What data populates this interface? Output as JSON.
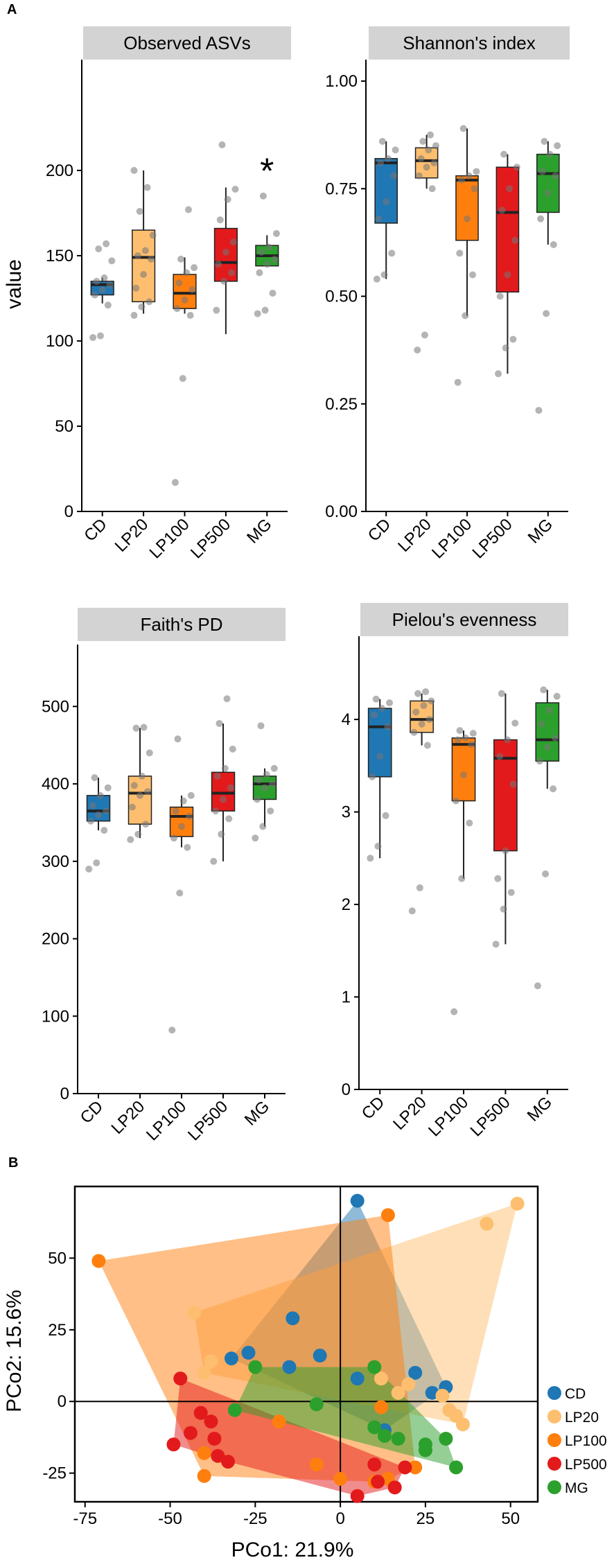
{
  "figure": {
    "panel_a_label": "A",
    "panel_b_label": "B",
    "y_label": "value"
  },
  "groups": [
    "CD",
    "LP20",
    "LP100",
    "LP500",
    "MG"
  ],
  "colors": {
    "CD": "#1f77b4",
    "LP20": "#fdbf6f",
    "LP100": "#ff7f0e",
    "LP500": "#e31a1c",
    "MG": "#2ca02c"
  },
  "chart_data": [
    {
      "type": "box",
      "title": "Observed ASVs",
      "xlabel": "",
      "ylabel": "value",
      "categories": [
        "CD",
        "LP20",
        "LP100",
        "LP500",
        "MG"
      ],
      "ylim": [
        0,
        265
      ],
      "yticks": [
        0,
        50,
        100,
        150,
        200
      ],
      "annotation": {
        "text": "*",
        "category": "MG",
        "value": 203
      },
      "boxes": [
        {
          "category": "CD",
          "q1": 127,
          "median": 133,
          "q3": 135,
          "whisker_low": 122,
          "whisker_high": 137,
          "points": [
            102,
            103,
            121,
            127,
            130,
            133,
            135,
            137,
            147,
            154,
            157
          ]
        },
        {
          "category": "LP20",
          "q1": 123,
          "median": 149,
          "q3": 165,
          "whisker_low": 116,
          "whisker_high": 200,
          "points": [
            115,
            120,
            123,
            131,
            139,
            148,
            150,
            153,
            162,
            176,
            190,
            200
          ]
        },
        {
          "category": "LP100",
          "q1": 119,
          "median": 128,
          "q3": 139,
          "whisker_low": 116,
          "whisker_high": 149,
          "points": [
            17,
            78,
            115,
            119,
            124,
            130,
            134,
            140,
            143,
            148,
            177
          ]
        },
        {
          "category": "LP500",
          "q1": 135,
          "median": 146,
          "q3": 166,
          "whisker_low": 104,
          "whisker_high": 190,
          "points": [
            118,
            135,
            140,
            145,
            152,
            158,
            171,
            183,
            189,
            215
          ]
        },
        {
          "category": "MG",
          "q1": 144,
          "median": 150,
          "q3": 156,
          "whisker_low": 144,
          "whisker_high": 162,
          "points": [
            116,
            118,
            128,
            140,
            145,
            148,
            152,
            155,
            163,
            185
          ]
        }
      ]
    },
    {
      "type": "box",
      "title": "Shannon's index",
      "xlabel": "",
      "ylabel": "",
      "categories": [
        "CD",
        "LP20",
        "LP100",
        "LP500",
        "MG"
      ],
      "ylim": [
        0,
        1.05
      ],
      "yticks": [
        "0.00",
        "0.25",
        "0.50",
        "0.75",
        "1.00"
      ],
      "boxes": [
        {
          "category": "CD",
          "q1": 0.67,
          "median": 0.81,
          "q3": 0.82,
          "whisker_low": 0.54,
          "whisker_high": 0.86,
          "points": [
            0.54,
            0.55,
            0.6,
            0.68,
            0.72,
            0.78,
            0.81,
            0.82,
            0.84,
            0.86
          ]
        },
        {
          "category": "LP20",
          "q1": 0.775,
          "median": 0.815,
          "q3": 0.845,
          "whisker_low": 0.75,
          "whisker_high": 0.875,
          "points": [
            0.375,
            0.41,
            0.75,
            0.78,
            0.8,
            0.81,
            0.82,
            0.84,
            0.85,
            0.86,
            0.875
          ]
        },
        {
          "category": "LP100",
          "q1": 0.63,
          "median": 0.77,
          "q3": 0.78,
          "whisker_low": 0.455,
          "whisker_high": 0.89,
          "points": [
            0.3,
            0.455,
            0.55,
            0.6,
            0.68,
            0.75,
            0.77,
            0.78,
            0.79,
            0.89
          ]
        },
        {
          "category": "LP500",
          "q1": 0.51,
          "median": 0.695,
          "q3": 0.8,
          "whisker_low": 0.32,
          "whisker_high": 0.83,
          "points": [
            0.32,
            0.38,
            0.4,
            0.5,
            0.55,
            0.63,
            0.7,
            0.75,
            0.8,
            0.83
          ]
        },
        {
          "category": "MG",
          "q1": 0.695,
          "median": 0.785,
          "q3": 0.83,
          "whisker_low": 0.62,
          "whisker_high": 0.86,
          "points": [
            0.235,
            0.46,
            0.62,
            0.68,
            0.74,
            0.78,
            0.79,
            0.83,
            0.85,
            0.86
          ]
        }
      ]
    },
    {
      "type": "box",
      "title": "Faith's PD",
      "xlabel": "",
      "ylabel": "",
      "categories": [
        "CD",
        "LP20",
        "LP100",
        "LP500",
        "MG"
      ],
      "ylim": [
        0,
        580
      ],
      "yticks": [
        0,
        100,
        200,
        300,
        400,
        500
      ],
      "boxes": [
        {
          "category": "CD",
          "q1": 352,
          "median": 365,
          "q3": 385,
          "whisker_low": 340,
          "whisker_high": 408,
          "points": [
            290,
            298,
            340,
            352,
            360,
            365,
            372,
            385,
            395,
            408
          ]
        },
        {
          "category": "LP20",
          "q1": 348,
          "median": 388,
          "q3": 410,
          "whisker_low": 330,
          "whisker_high": 472,
          "points": [
            328,
            335,
            348,
            370,
            385,
            390,
            398,
            410,
            440,
            472,
            473
          ]
        },
        {
          "category": "LP100",
          "q1": 332,
          "median": 358,
          "q3": 370,
          "whisker_low": 318,
          "whisker_high": 385,
          "points": [
            82,
            259,
            318,
            330,
            345,
            358,
            365,
            378,
            385,
            458
          ]
        },
        {
          "category": "LP500",
          "q1": 365,
          "median": 388,
          "q3": 415,
          "whisker_low": 300,
          "whisker_high": 478,
          "points": [
            300,
            335,
            355,
            365,
            380,
            395,
            410,
            420,
            445,
            478,
            510
          ]
        },
        {
          "category": "MG",
          "q1": 380,
          "median": 400,
          "q3": 410,
          "whisker_low": 345,
          "whisker_high": 420,
          "points": [
            330,
            345,
            365,
            380,
            395,
            400,
            405,
            412,
            420,
            475
          ]
        }
      ]
    },
    {
      "type": "box",
      "title": "Pielou's evenness",
      "xlabel": "",
      "ylabel": "",
      "categories": [
        "CD",
        "LP20",
        "LP100",
        "LP500",
        "MG"
      ],
      "ylim": [
        0,
        4.9
      ],
      "yticks": [
        0,
        1,
        2,
        3,
        4
      ],
      "boxes": [
        {
          "category": "CD",
          "q1": 3.38,
          "median": 3.92,
          "q3": 4.12,
          "whisker_low": 2.5,
          "whisker_high": 4.22,
          "points": [
            2.5,
            2.63,
            2.96,
            3.38,
            3.6,
            3.92,
            4.05,
            4.12,
            4.18,
            4.22
          ]
        },
        {
          "category": "LP20",
          "q1": 3.86,
          "median": 4.0,
          "q3": 4.2,
          "whisker_low": 3.72,
          "whisker_high": 4.28,
          "points": [
            1.93,
            2.18,
            3.72,
            3.86,
            3.95,
            4.0,
            4.08,
            4.15,
            4.2,
            4.28,
            4.3
          ]
        },
        {
          "category": "LP100",
          "q1": 3.12,
          "median": 3.73,
          "q3": 3.8,
          "whisker_low": 2.28,
          "whisker_high": 3.88,
          "points": [
            0.84,
            2.28,
            2.88,
            3.12,
            3.4,
            3.73,
            3.78,
            3.8,
            3.85,
            3.88
          ]
        },
        {
          "category": "LP500",
          "q1": 2.58,
          "median": 3.58,
          "q3": 3.78,
          "whisker_low": 1.57,
          "whisker_high": 4.28,
          "points": [
            1.57,
            1.95,
            2.13,
            2.28,
            2.58,
            3.3,
            3.6,
            3.78,
            3.96,
            4.28
          ]
        },
        {
          "category": "MG",
          "q1": 3.55,
          "median": 3.78,
          "q3": 4.18,
          "whisker_low": 3.25,
          "whisker_high": 4.32,
          "points": [
            1.12,
            2.33,
            3.25,
            3.55,
            3.7,
            3.8,
            3.95,
            4.1,
            4.25,
            4.32
          ]
        }
      ]
    },
    {
      "type": "scatter",
      "title": "",
      "xlabel": "PCo1: 21.9%",
      "ylabel": "PCo2: 15.6%",
      "xlim": [
        -78,
        58
      ],
      "ylim": [
        -35,
        75
      ],
      "xticks": [
        -75,
        -50,
        -25,
        0,
        25,
        50
      ],
      "yticks": [
        -25,
        0,
        25,
        50
      ],
      "reference_lines": {
        "x": 0,
        "y": 0
      },
      "legend_position": "right",
      "series": [
        {
          "name": "CD",
          "points": [
            [
              5,
              70
            ],
            [
              -14,
              29
            ],
            [
              -27,
              17
            ],
            [
              -32,
              15
            ],
            [
              -6,
              16
            ],
            [
              -15,
              12
            ],
            [
              5,
              8
            ],
            [
              22,
              10
            ],
            [
              27,
              3
            ],
            [
              31,
              5
            ],
            [
              13,
              -10
            ]
          ]
        },
        {
          "name": "LP20",
          "points": [
            [
              52,
              69
            ],
            [
              43,
              62
            ],
            [
              -43,
              31
            ],
            [
              -38,
              14
            ],
            [
              -40,
              10
            ],
            [
              12,
              8
            ],
            [
              17,
              3
            ],
            [
              20,
              6
            ],
            [
              30,
              2
            ],
            [
              32,
              -3
            ],
            [
              34,
              -5
            ],
            [
              36,
              -8
            ]
          ]
        },
        {
          "name": "LP100",
          "points": [
            [
              -71,
              49
            ],
            [
              14,
              65
            ],
            [
              -18,
              -7
            ],
            [
              -40,
              -18
            ],
            [
              -40,
              -26
            ],
            [
              -7,
              -22
            ],
            [
              0,
              -27
            ],
            [
              10,
              -28
            ],
            [
              14,
              -27
            ],
            [
              22,
              -23
            ],
            [
              12,
              -2
            ]
          ]
        },
        {
          "name": "LP500",
          "points": [
            [
              -47,
              8
            ],
            [
              -49,
              -15
            ],
            [
              -44,
              -11
            ],
            [
              -38,
              -7
            ],
            [
              -41,
              -4
            ],
            [
              -37,
              -13
            ],
            [
              -36,
              -19
            ],
            [
              -33,
              -21
            ],
            [
              5,
              -33
            ],
            [
              10,
              -22
            ],
            [
              11,
              -28
            ],
            [
              16,
              -30
            ],
            [
              19,
              -23
            ]
          ]
        },
        {
          "name": "MG",
          "points": [
            [
              -25,
              12
            ],
            [
              -31,
              -3
            ],
            [
              -7,
              -1
            ],
            [
              10,
              12
            ],
            [
              10,
              -9
            ],
            [
              13,
              -12
            ],
            [
              17,
              -13
            ],
            [
              25,
              -15
            ],
            [
              25,
              -17
            ],
            [
              31,
              -13
            ],
            [
              34,
              -23
            ]
          ]
        }
      ]
    }
  ]
}
